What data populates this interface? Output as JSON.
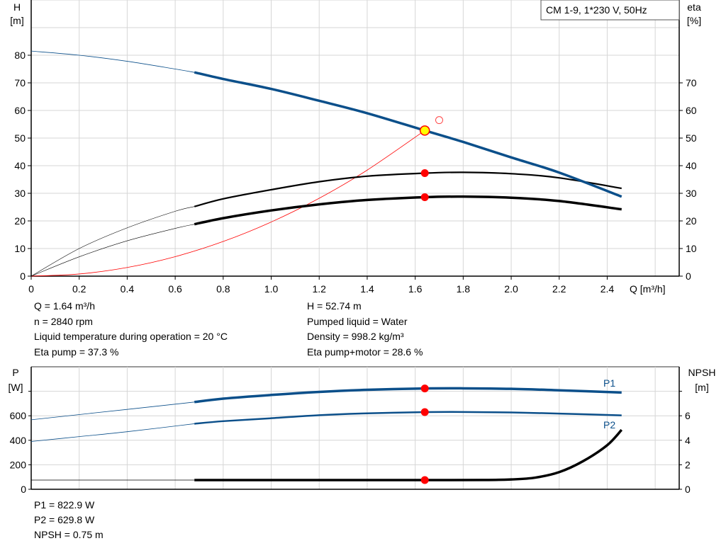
{
  "chart_data": [
    {
      "type": "line",
      "title": "CM 1-9, 1*230 V, 50Hz",
      "xlabel": "Q [m³/h]",
      "ylabel_left": [
        "H",
        "[m]"
      ],
      "ylabel_right": [
        "eta",
        "[%]"
      ],
      "xlim": [
        0,
        2.7
      ],
      "ylim": [
        0,
        100
      ],
      "x_ticks": [
        "0",
        "0.2",
        "0.4",
        "0.6",
        "0.8",
        "1.0",
        "1.2",
        "1.4",
        "1.6",
        "1.8",
        "2.0",
        "2.2",
        "2.4"
      ],
      "y_ticks_left": [
        "0",
        "10",
        "20",
        "30",
        "40",
        "50",
        "60",
        "70",
        "80"
      ],
      "y_ticks_right": [
        "0",
        "10",
        "20",
        "30",
        "40",
        "50",
        "60",
        "70"
      ],
      "grid": true,
      "series": [
        {
          "id": "head",
          "color": "#0b4f8a",
          "x": [
            0,
            0.2,
            0.4,
            0.6,
            0.68,
            0.8,
            1.0,
            1.2,
            1.4,
            1.64,
            1.8,
            2.0,
            2.2,
            2.46
          ],
          "y": [
            81.5,
            80,
            77.8,
            75,
            73.8,
            71.4,
            67.8,
            63.5,
            59,
            52.74,
            48.6,
            43,
            37.5,
            28.8
          ]
        },
        {
          "id": "eta-pump",
          "color": "#000000",
          "x": [
            0,
            0.2,
            0.4,
            0.6,
            0.68,
            0.8,
            1.0,
            1.2,
            1.4,
            1.64,
            1.8,
            2.0,
            2.2,
            2.46
          ],
          "y": [
            0,
            10,
            17.5,
            23.5,
            25.2,
            28,
            31.3,
            34.2,
            36.2,
            37.3,
            37.6,
            37.1,
            35.6,
            31.8
          ]
        },
        {
          "id": "eta-pump-motor",
          "color": "#000000",
          "x": [
            0,
            0.2,
            0.4,
            0.6,
            0.68,
            0.8,
            1.0,
            1.2,
            1.4,
            1.64,
            1.8,
            2.0,
            2.2,
            2.46
          ],
          "y": [
            0,
            7,
            12.8,
            17.3,
            18.8,
            21,
            23.8,
            26,
            27.6,
            28.6,
            28.8,
            28.4,
            27.2,
            24.2
          ]
        },
        {
          "id": "system-curve",
          "color": "#ff0000",
          "x": [
            0,
            0.2,
            0.4,
            0.6,
            0.8,
            1.0,
            1.2,
            1.4,
            1.64
          ],
          "y": [
            0,
            0.78,
            3.14,
            7.06,
            12.55,
            19.6,
            28.2,
            38.4,
            52.74
          ]
        }
      ],
      "duty_point": {
        "x": 1.64,
        "y": 52.74
      },
      "eta_points": [
        {
          "x": 1.64,
          "y": 37.3
        },
        {
          "x": 1.64,
          "y": 28.6
        }
      ],
      "requested_point": {
        "x": 1.7,
        "y": 56.5
      },
      "min_flow": 0.68
    },
    {
      "type": "line",
      "ylabel_left": [
        "P",
        "[W]"
      ],
      "ylabel_right": [
        "NPSH",
        "[m]"
      ],
      "xlim": [
        0,
        2.7
      ],
      "ylim_left": [
        0,
        1000
      ],
      "ylim_right": [
        0,
        10
      ],
      "y_ticks_left": [
        "0",
        "200",
        "400",
        "600"
      ],
      "y_ticks_right": [
        "0",
        "2",
        "4",
        "6"
      ],
      "grid": true,
      "series": [
        {
          "id": "P1",
          "name": "P1",
          "color": "#0b4f8a",
          "axis": "left",
          "x": [
            0,
            0.2,
            0.4,
            0.68,
            0.8,
            1.0,
            1.2,
            1.4,
            1.64,
            1.8,
            2.0,
            2.2,
            2.46
          ],
          "y": [
            567,
            610,
            652,
            712,
            740,
            770,
            795,
            812,
            822.9,
            824,
            820,
            808,
            790
          ]
        },
        {
          "id": "P2",
          "name": "P2",
          "color": "#0b4f8a",
          "axis": "right_label",
          "x": [
            0,
            0.2,
            0.4,
            0.68,
            0.8,
            1.0,
            1.2,
            1.4,
            1.64,
            1.8,
            2.0,
            2.2,
            2.46
          ],
          "y": [
            390,
            430,
            470,
            535,
            556,
            580,
            605,
            620,
            629.8,
            631,
            627,
            618,
            603
          ]
        },
        {
          "id": "NPSH",
          "color": "#000000",
          "axis": "right",
          "x": [
            0,
            0.68,
            1.0,
            1.64,
            1.9,
            2.0,
            2.1,
            2.2,
            2.3,
            2.4,
            2.46
          ],
          "y": [
            0.75,
            0.75,
            0.75,
            0.75,
            0.76,
            0.8,
            0.95,
            1.4,
            2.3,
            3.6,
            4.85
          ]
        }
      ],
      "points": [
        {
          "series": "P1",
          "x": 1.64,
          "y": 822.9
        },
        {
          "series": "P2",
          "x": 1.64,
          "y": 629.8
        },
        {
          "series": "NPSH",
          "x": 1.64,
          "y": 0.75
        }
      ]
    }
  ],
  "results_top": {
    "left": [
      "Q = 1.64 m³/h",
      "n = 2840 rpm",
      "Liquid temperature during operation = 20 °C",
      "Eta pump = 37.3 %"
    ],
    "right": [
      "H = 52.74 m",
      "Pumped liquid = Water",
      "Density = 998.2 kg/m³",
      "Eta pump+motor = 28.6 %"
    ]
  },
  "results_bottom": [
    "P1 = 822.9 W",
    "P2 = 629.8 W",
    "NPSH = 0.75 m"
  ]
}
